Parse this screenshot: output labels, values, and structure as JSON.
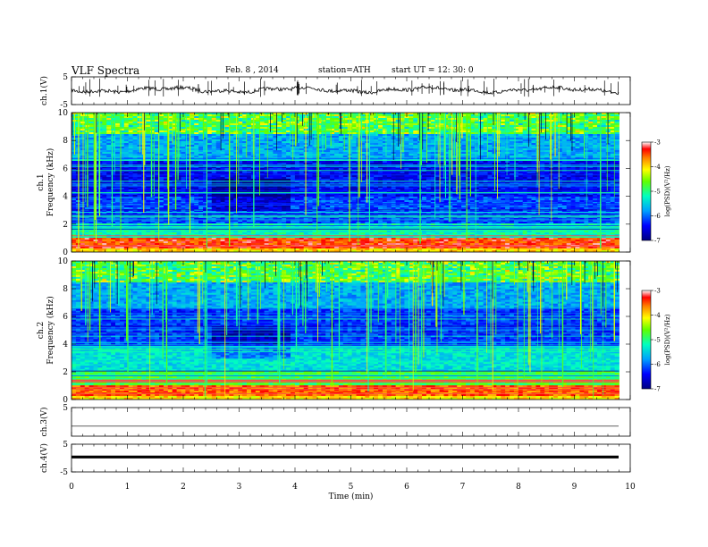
{
  "header": {
    "title": "VLF  Spectra",
    "date": "Feb. 8  , 2014",
    "station": "station=ATH",
    "start": "start  UT  =   12: 30: 0"
  },
  "chart_data": [
    {
      "type": "line",
      "name": "ch1-waveform",
      "ylabel": "ch.1(V)",
      "ylim": [
        -5,
        5
      ],
      "yticks": [
        "5",
        "-5"
      ],
      "baseline": 0.3
    },
    {
      "type": "heatmap",
      "name": "ch1-spectrogram",
      "ylabel": "ch.1",
      "ylabel2": "Frequency  (kHz)",
      "ylim": [
        0,
        10
      ],
      "yticks": [
        "0",
        "2",
        "4",
        "6",
        "8",
        "10"
      ],
      "colorbar": {
        "label": "log(PSD)(V²/Hz)",
        "range": [
          -7,
          -3
        ],
        "ticks": [
          "-3",
          "-4",
          "-5",
          "-6",
          "-7"
        ]
      }
    },
    {
      "type": "heatmap",
      "name": "ch2-spectrogram",
      "ylabel": "ch.2",
      "ylabel2": "Frequency  (kHz)",
      "ylim": [
        0,
        10
      ],
      "yticks": [
        "0",
        "2",
        "4",
        "6",
        "8",
        "10"
      ],
      "colorbar": {
        "label": "log(PSD)(V²/Hz)",
        "range": [
          -7,
          -3
        ],
        "ticks": [
          "-3",
          "-4",
          "-5",
          "-6",
          "-7"
        ]
      }
    },
    {
      "type": "line",
      "name": "ch3-waveform",
      "ylabel": "ch.3(V)",
      "ylim": [
        -5,
        5
      ],
      "yticks": [
        "5"
      ],
      "baseline": -1.5
    },
    {
      "type": "line",
      "name": "ch4-waveform",
      "ylabel": "ch.4(V)",
      "ylim": [
        -5,
        5
      ],
      "yticks": [
        "5",
        "-5"
      ],
      "baseline": 0.4
    }
  ],
  "xaxis": {
    "label": "Time  (min)",
    "range": [
      0,
      10
    ],
    "data_end": 9.8,
    "ticks": [
      "0",
      "1",
      "2",
      "3",
      "4",
      "5",
      "6",
      "7",
      "8",
      "9",
      "10"
    ]
  },
  "colors": {
    "background": "#ffffff",
    "axis": "#000000"
  }
}
